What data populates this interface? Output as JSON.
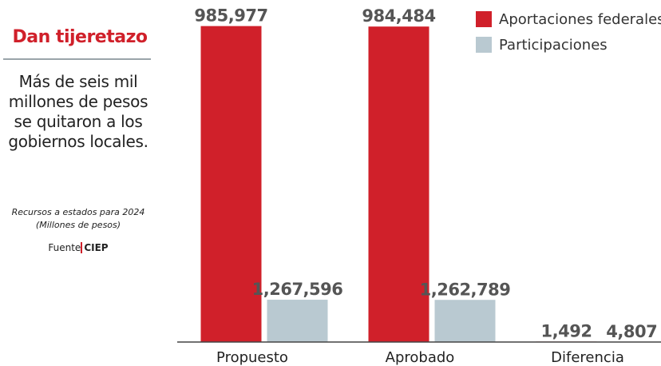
{
  "chart_data": {
    "type": "bar",
    "title": "Dan tijeretazo",
    "subtitle": "Más de seis mil millones de pesos se quitaron a los gobiernos locales.",
    "annotations": [
      "Recursos a estados para 2024",
      "(Millones de pesos)"
    ],
    "source": {
      "label": "Fuente",
      "name": "CIEP"
    },
    "categories": [
      "Propuesto",
      "Aprobado",
      "Diferencia"
    ],
    "series": [
      {
        "name": "Aportaciones federales",
        "color": "#d0202a",
        "values": [
          985977,
          984484,
          1492
        ],
        "value_labels": [
          "985,977",
          "984,484",
          "1,492"
        ]
      },
      {
        "name": "Participaciones",
        "color": "#b9c9d1",
        "axis": "y2",
        "values": [
          1267596,
          1262789,
          4807
        ],
        "value_labels": [
          "1,267,596",
          "1,262,789",
          "4,807"
        ]
      }
    ],
    "ylim": [
      0,
      1000000
    ],
    "y2lim": [
      0,
      9600000
    ],
    "legend": "top-right"
  }
}
